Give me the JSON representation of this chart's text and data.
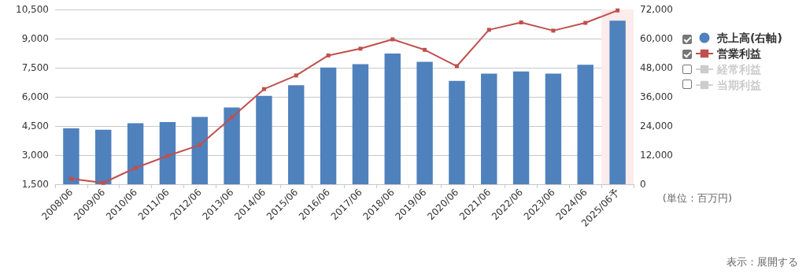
{
  "chart_data": {
    "type": "bar",
    "categories": [
      "2008/06",
      "2009/06",
      "2010/06",
      "2011/06",
      "2012/06",
      "2013/06",
      "2014/06",
      "2015/06",
      "2016/06",
      "2017/06",
      "2018/06",
      "2019/06",
      "2020/06",
      "2021/06",
      "2022/06",
      "2023/06",
      "2024/06",
      "2025/06予"
    ],
    "series": [
      {
        "name": "売上高(右軸)",
        "axis": "y2",
        "color": "#4f81bd",
        "values": [
          23000,
          22500,
          25100,
          25600,
          27700,
          31600,
          36400,
          40800,
          48100,
          49500,
          53800,
          50400,
          42600,
          45600,
          46500,
          45600,
          49200,
          67400
        ]
      },
      {
        "name": "営業利益",
        "type": "line",
        "color": "#c0504d",
        "values": [
          1780,
          1570,
          2340,
          2960,
          3520,
          4950,
          6400,
          7100,
          8130,
          8480,
          8960,
          8420,
          7580,
          9450,
          9830,
          9410,
          9810,
          10450
        ]
      },
      {
        "name": "経常利益",
        "type": "line",
        "color": "#cccccc",
        "values": [
          null,
          null,
          null,
          null,
          null,
          null,
          null,
          null,
          null,
          null,
          null,
          null,
          null,
          null,
          null,
          null,
          null,
          null
        ]
      },
      {
        "name": "当期利益",
        "type": "line",
        "color": "#cccccc",
        "values": [
          null,
          null,
          null,
          null,
          null,
          null,
          null,
          null,
          null,
          null,
          null,
          null,
          null,
          null,
          null,
          null,
          null,
          null
        ]
      }
    ],
    "ylim": [
      1500,
      10500
    ],
    "yticks": [
      {
        "value": 1500,
        "label": "1,500"
      },
      {
        "value": 3000,
        "label": "3,000"
      },
      {
        "value": 4500,
        "label": "4,500"
      },
      {
        "value": 6000,
        "label": "6,000"
      },
      {
        "value": 7500,
        "label": "7,500"
      },
      {
        "value": 9000,
        "label": "9,000"
      },
      {
        "value": 10500,
        "label": "10,500"
      }
    ],
    "y2lim": [
      0,
      72000
    ],
    "y2ticks": [
      0,
      {
        "value": 12000,
        "label": "12,000"
      },
      {
        "value": 24000,
        "label": "24,000"
      },
      {
        "value": 36000,
        "label": "36,000"
      },
      {
        "value": 48000,
        "label": "48,000"
      },
      {
        "value": 60000,
        "label": "60,000"
      },
      {
        "value": 72000,
        "label": "72,000"
      }
    ],
    "bands": [
      {
        "axis": "x",
        "from": "2025/06予",
        "to": "2025/06予",
        "color": "#fdecec"
      }
    ],
    "annotations": [
      "(単位：百万円)",
      "表示：展開する"
    ],
    "grid": "y",
    "legend": "right",
    "marker": "square",
    "line_style": "solid"
  }
}
